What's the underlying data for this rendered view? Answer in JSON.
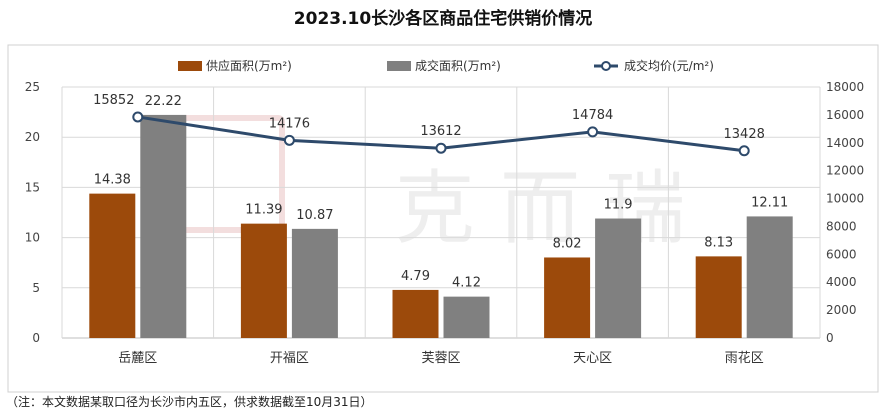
{
  "chart_data": {
    "type": "bar",
    "title": "2023.10长沙各区商品住宅供销价情况",
    "categories": [
      "岳麓区",
      "开福区",
      "芙蓉区",
      "天心区",
      "雨花区"
    ],
    "series": [
      {
        "name": "供应面积(万m²)",
        "type": "bar",
        "axis": "left",
        "color": "#9C4A0B",
        "values": [
          14.38,
          11.39,
          4.79,
          8.02,
          8.13
        ],
        "labels": [
          "14.38",
          "11.39",
          "4.79",
          "8.02",
          "8.13"
        ]
      },
      {
        "name": "成交面积(万m²)",
        "type": "bar",
        "axis": "left",
        "color": "#808080",
        "values": [
          22.22,
          10.87,
          4.12,
          11.9,
          12.11
        ],
        "labels": [
          "22.22",
          "10.87",
          "4.12",
          "11.9",
          "12.11"
        ]
      },
      {
        "name": "成交均价(元/m²)",
        "type": "line",
        "axis": "right",
        "color": "#2E4A6B",
        "values": [
          15852,
          14176,
          13612,
          14784,
          13428
        ],
        "labels": [
          "15852",
          "14176",
          "13612",
          "14784",
          "13428"
        ]
      }
    ],
    "ylim_left": [
      0,
      25
    ],
    "yticks_left": [
      "0",
      "5",
      "10",
      "15",
      "20",
      "25"
    ],
    "ylim_right": [
      0,
      18000
    ],
    "yticks_right": [
      "0",
      "2000",
      "4000",
      "6000",
      "8000",
      "10000",
      "12000",
      "14000",
      "16000",
      "18000"
    ],
    "legend_position": "top",
    "grid": true
  },
  "watermark": {
    "text": "克 而 瑞"
  },
  "footnote": "（注：本文数据某取口径为长沙市内五区，供求数据截至10月31日）"
}
